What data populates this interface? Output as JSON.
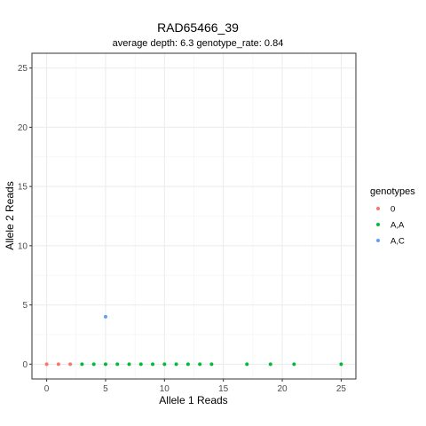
{
  "chart_data": {
    "type": "scatter",
    "title": "RAD65466_39",
    "subtitle": "average depth:  6.3  genotype_rate:  0.84",
    "xlabel": "Allele 1 Reads",
    "ylabel": "Allele 2 Reads",
    "xlim": [
      -1.25,
      26.25
    ],
    "ylim": [
      -1.25,
      26.25
    ],
    "x_ticks": [
      0,
      5,
      10,
      15,
      20,
      25
    ],
    "y_ticks": [
      0,
      5,
      10,
      15,
      20,
      25
    ],
    "grid": true,
    "legend": {
      "title": "genotypes",
      "position": "right"
    },
    "series": [
      {
        "name": "0",
        "color": "#F8766D",
        "points": [
          [
            0,
            0
          ],
          [
            1,
            0
          ],
          [
            2,
            0
          ]
        ]
      },
      {
        "name": "A,A",
        "color": "#00BA38",
        "points": [
          [
            3,
            0
          ],
          [
            4,
            0
          ],
          [
            5,
            0
          ],
          [
            6,
            0
          ],
          [
            7,
            0
          ],
          [
            8,
            0
          ],
          [
            9,
            0
          ],
          [
            10,
            0
          ],
          [
            11,
            0
          ],
          [
            12,
            0
          ],
          [
            13,
            0
          ],
          [
            14,
            0
          ],
          [
            17,
            0
          ],
          [
            19,
            0
          ],
          [
            21,
            0
          ],
          [
            25,
            0
          ]
        ]
      },
      {
        "name": "A,C",
        "color": "#619CFF",
        "points": [
          [
            5,
            4
          ]
        ]
      }
    ]
  }
}
